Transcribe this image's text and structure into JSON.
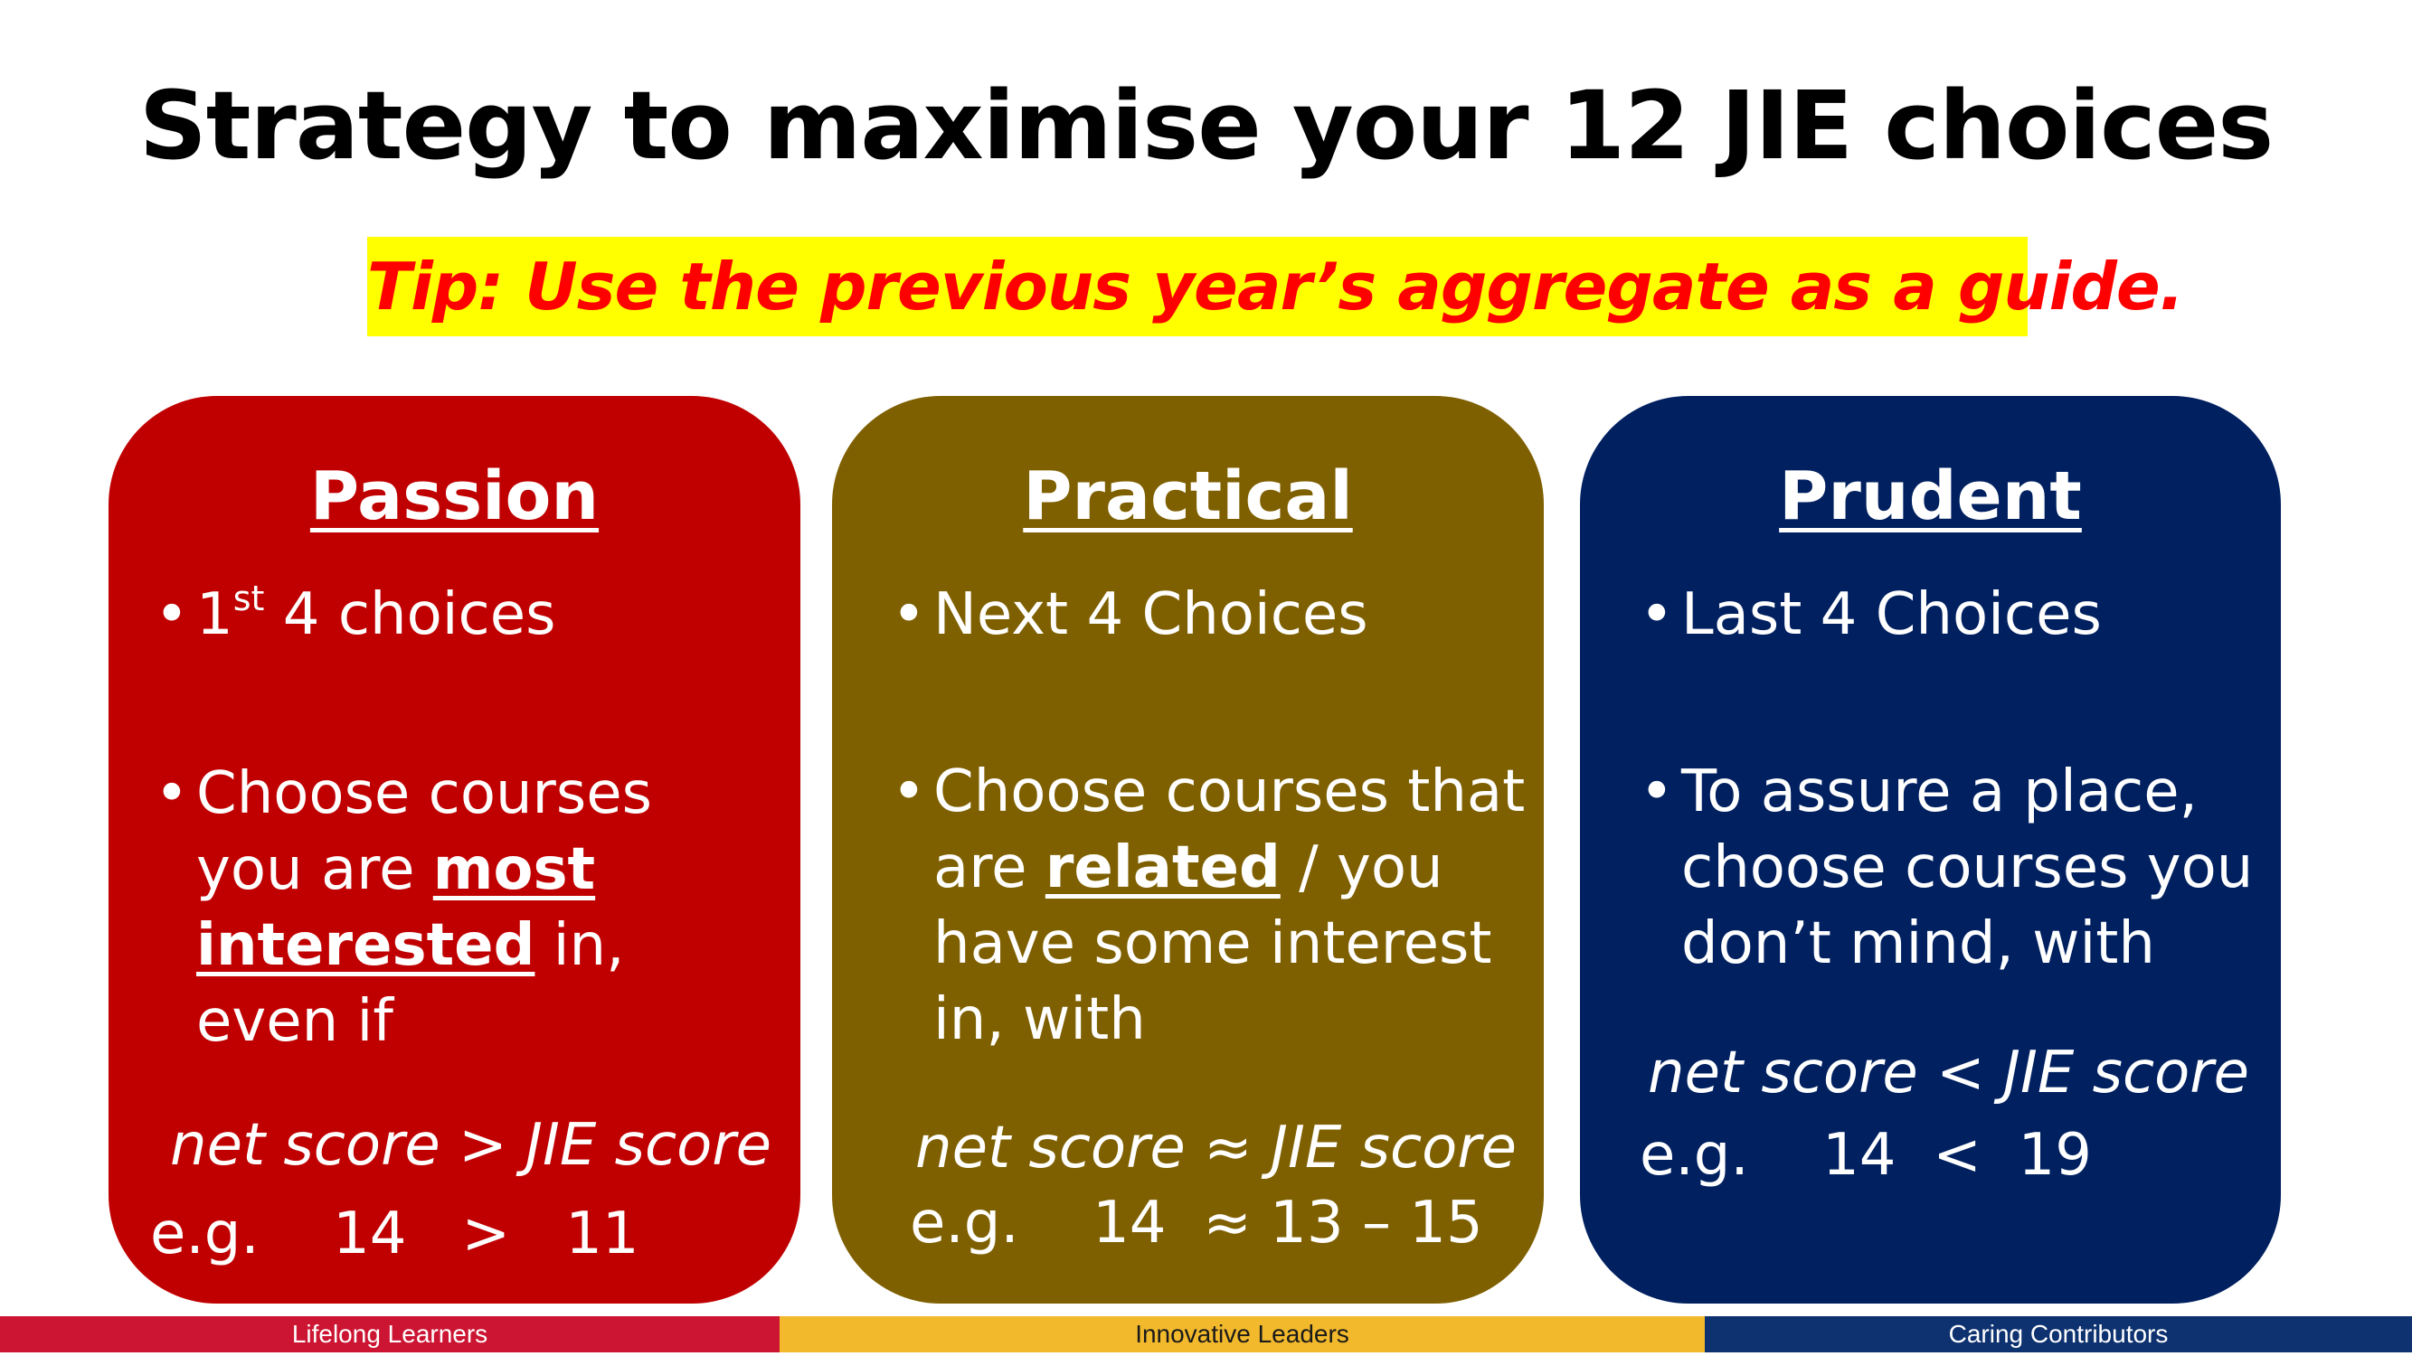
{
  "title": "Strategy to maximise your 12 JIE choices",
  "tip": "Tip: Use the previous year’s aggregate as a guide.",
  "colors": {
    "passion": "#c00000",
    "practical": "#7f6000",
    "prudent": "#002060",
    "tip_background": "#ffff00",
    "tip_text": "#ff0000"
  },
  "cards": {
    "passion": {
      "heading": "Passion",
      "bullet1_pre": "1",
      "bullet1_sup": "st",
      "bullet1_post": " 4 choices",
      "bullet2_a": "Choose courses you are ",
      "bullet2_strong": "most interested",
      "bullet2_b": " in, even if",
      "formula": "net score > JIE score",
      "example": "e.g.    14   >   11"
    },
    "practical": {
      "heading": "Practical",
      "bullet1": "Next 4 Choices",
      "bullet2_a": "Choose courses that are ",
      "bullet2_strong": "related",
      "bullet2_b": " / you have some interest in, with",
      "formula": "net score ≈ JIE score",
      "example": "e.g.    14  ≈ 13 – 15"
    },
    "prudent": {
      "heading": "Prudent",
      "bullet1": "Last 4 Choices",
      "bullet2": "To assure a place, choose courses you don’t mind, with",
      "formula": "net score < JIE score",
      "example": "e.g.    14  <  19"
    }
  },
  "footer": [
    "Lifelong Learners",
    "Innovative Leaders",
    "Caring Contributors"
  ]
}
